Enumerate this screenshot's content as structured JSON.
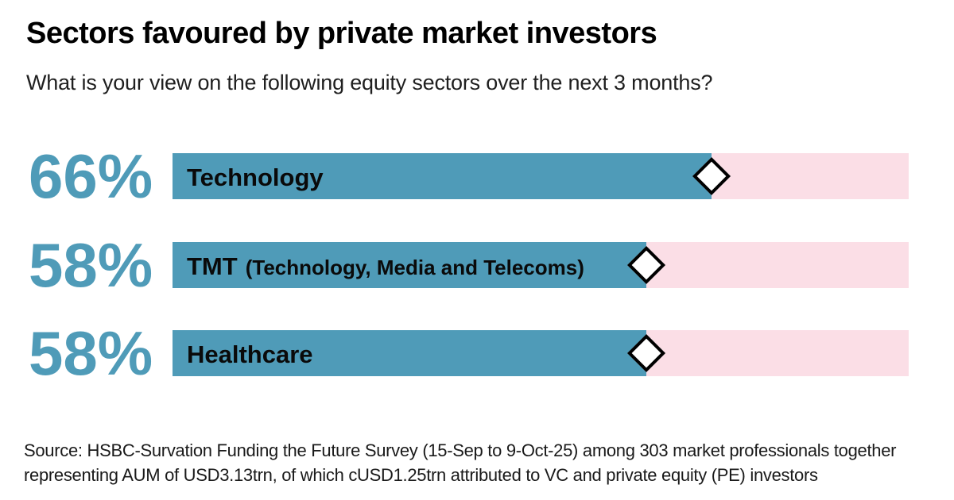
{
  "page": {
    "background": "#ffffff"
  },
  "header": {
    "title": "Sectors favoured by private market investors",
    "subtitle": "What is your view on the following equity sectors over the next 3 months?"
  },
  "chart_data": {
    "type": "bar",
    "orientation": "horizontal",
    "unit": "percent",
    "title": "Sectors favoured by private market investors",
    "subtitle": "What is your view on the following equity sectors over the next 3 months?",
    "categories": [
      "Technology",
      "TMT (Technology, Media and Telecoms)",
      "Healthcare"
    ],
    "values": [
      66,
      58,
      58
    ],
    "xlim": [
      0,
      90
    ],
    "grid": false,
    "legend": "none",
    "marker": "diamond-outline",
    "rows": [
      {
        "value": 66,
        "value_label": "66%",
        "label": "Technology",
        "label_suffix": ""
      },
      {
        "value": 58,
        "value_label": "58%",
        "label": "TMT",
        "label_suffix": "(Technology, Media and Telecoms)"
      },
      {
        "value": 58,
        "value_label": "58%",
        "label": "Healthcare",
        "label_suffix": ""
      }
    ],
    "colors": {
      "bar_fill": "#4F9BB8",
      "bar_track": "#FBDEE6",
      "value_text": "#4F9BB8",
      "label_text": "#0a0a0a",
      "marker_fill": "#FFFFFF",
      "marker_border": "#000000"
    }
  },
  "footer": {
    "source_line1": "Source: HSBC-Survation Funding the Future Survey (15-Sep to 9-Oct-25) among 303 market professionals together",
    "source_line2": "representing AUM of USD3.13trn, of which cUSD1.25trn attributed to VC and private equity (PE) investors"
  }
}
